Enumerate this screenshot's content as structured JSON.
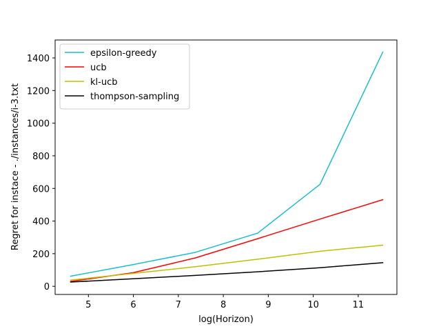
{
  "chart_data": {
    "type": "line",
    "title": "",
    "xlabel": "log(Horizon)",
    "ylabel": "Regret for instace - ./instances/i-3.txt",
    "xlim": [
      4.26,
      11.86
    ],
    "ylim": [
      -50,
      1510
    ],
    "xticks": [
      5,
      6,
      7,
      8,
      9,
      10,
      11
    ],
    "yticks": [
      0,
      200,
      400,
      600,
      800,
      1000,
      1200,
      1400
    ],
    "grid": false,
    "legend_position": "top-left",
    "x": [
      4.605,
      5.991,
      7.378,
      8.764,
      10.15,
      11.546
    ],
    "series": [
      {
        "name": "epsilon-greedy",
        "color": "#17becf",
        "values": [
          62,
          133,
          208,
          326,
          625,
          1436
        ]
      },
      {
        "name": "ucb",
        "color": "#ff0000",
        "values": [
          30,
          83,
          174,
          292,
          412,
          531
        ]
      },
      {
        "name": "kl-ucb",
        "color": "#bfbf00",
        "values": [
          38,
          79,
          120,
          166,
          215,
          252
        ]
      },
      {
        "name": "thompson-sampling",
        "color": "#000000",
        "values": [
          26,
          46,
          67,
          89,
          114,
          145
        ]
      }
    ]
  }
}
